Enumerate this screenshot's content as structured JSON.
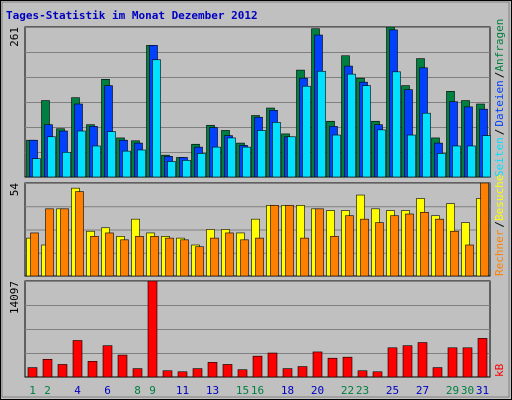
{
  "chart_data": [
    {
      "type": "bar",
      "title": "Tages-Statistik im Monat Dezember 2012",
      "legend_separator": "/",
      "ylim": [
        0,
        261
      ],
      "yticks": [
        261
      ],
      "series": [
        {
          "name": "Anfragen",
          "color": "#008040",
          "values": [
            64,
            133,
            84,
            138,
            91,
            170,
            68,
            63,
            229,
            38,
            34,
            57,
            90,
            81,
            59,
            107,
            120,
            75,
            186,
            258,
            97,
            211,
            172,
            97,
            261,
            159,
            206,
            68,
            149,
            133,
            127
          ]
        },
        {
          "name": "Dateien",
          "color": "#0040ff",
          "values": [
            64,
            91,
            80,
            127,
            88,
            159,
            64,
            59,
            229,
            36,
            34,
            52,
            86,
            72,
            55,
            104,
            116,
            70,
            172,
            247,
            88,
            193,
            165,
            91,
            256,
            152,
            190,
            59,
            131,
            122,
            118
          ]
        },
        {
          "name": "Seiten",
          "color": "#00e0ff",
          "values": [
            32,
            70,
            43,
            80,
            54,
            79,
            45,
            47,
            204,
            27,
            29,
            41,
            52,
            68,
            52,
            81,
            95,
            70,
            158,
            184,
            73,
            179,
            159,
            82,
            183,
            73,
            111,
            41,
            54,
            54,
            72
          ]
        }
      ]
    },
    {
      "type": "bar",
      "ylim": [
        0,
        54
      ],
      "yticks": [
        54
      ],
      "series": [
        {
          "name": "Besuche",
          "color": "#ffff00",
          "values": [
            22,
            18,
            39,
            51,
            26,
            28,
            23,
            33,
            25,
            23,
            22,
            18,
            27,
            27,
            25,
            33,
            41,
            41,
            41,
            39,
            38,
            38,
            47,
            39,
            38,
            38,
            45,
            35,
            42,
            31,
            45
          ]
        },
        {
          "name": "Rechner",
          "color": "#ff8000",
          "values": [
            25,
            39,
            39,
            49,
            23,
            25,
            21,
            23,
            23,
            22,
            21,
            17,
            22,
            25,
            21,
            22,
            41,
            41,
            22,
            39,
            23,
            35,
            33,
            31,
            35,
            36,
            37,
            33,
            26,
            18,
            54
          ]
        }
      ]
    },
    {
      "type": "bar",
      "ylim": [
        0,
        14097
      ],
      "yticks": [
        14097
      ],
      "categories": [
        "1",
        "2",
        null,
        "4",
        null,
        "6",
        null,
        "8",
        "9",
        null,
        "11",
        null,
        "13",
        null,
        "15",
        "16",
        null,
        "18",
        null,
        "20",
        null,
        "22",
        "23",
        null,
        "25",
        null,
        "27",
        null,
        "29",
        "30",
        "31"
      ],
      "category_colors": [
        "#008040",
        "#008040",
        "#0000c0",
        "#0000c0",
        "#0000c0",
        "#0000c0",
        "#0000c0",
        "#008040",
        "#008040",
        "#0000c0",
        "#0000c0",
        "#0000c0",
        "#0000c0",
        "#0000c0",
        "#008040",
        "#008040",
        "#0000c0",
        "#0000c0",
        "#0000c0",
        "#0000c0",
        "#0000c0",
        "#008040",
        "#008040",
        "#0000c0",
        "#0000c0",
        "#0000c0",
        "#0000c0",
        "#0000c0",
        "#008040",
        "#008040",
        "#0000c0"
      ],
      "series": [
        {
          "name": "kB",
          "color": "#ff0000",
          "values": [
            1380,
            2600,
            1840,
            5360,
            2300,
            4600,
            3220,
            1230,
            14097,
            920,
            770,
            1230,
            2150,
            1840,
            1070,
            3060,
            3520,
            1230,
            1530,
            3680,
            2760,
            2910,
            920,
            770,
            4290,
            4600,
            5060,
            1380,
            4290,
            4290,
            5670
          ]
        }
      ]
    }
  ]
}
